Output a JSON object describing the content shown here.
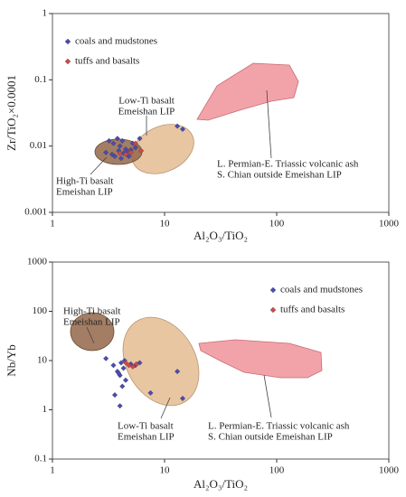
{
  "chart_data": [
    {
      "type": "scatter",
      "xlabel": "Al₂O₃/TiO₂",
      "ylabel": "Zr/TiO₂×0.0001",
      "xlim": [
        1,
        1000
      ],
      "ylim": [
        0.001,
        1
      ],
      "xticks": [
        1,
        10,
        100,
        1000
      ],
      "yticks": [
        0.001,
        0.01,
        0.1,
        1
      ],
      "log_x": true,
      "log_y": true,
      "legend": "upper left",
      "annotations": [
        "Low-Ti basalt",
        "Emeishan LIP",
        "High-Ti basalt",
        "Emeishan LIP",
        "L. Permian-E. Triassic volcanic ash",
        "S. Chian outside Emeishan LIP"
      ],
      "series": [
        {
          "name": "coals and mudstones",
          "color": "#4b4bb0",
          "x": [
            3.2,
            3.5,
            3.8,
            4.0,
            4.2,
            4.5,
            3.0,
            3.4,
            3.9,
            4.3,
            4.6,
            5.0,
            5.5,
            4.1,
            3.6,
            6.0,
            13,
            14.5,
            5.2,
            4.8
          ],
          "values": [
            0.012,
            0.011,
            0.013,
            0.01,
            0.012,
            0.009,
            0.008,
            0.0075,
            0.0085,
            0.0078,
            0.0082,
            0.0088,
            0.0095,
            0.0065,
            0.007,
            0.013,
            0.02,
            0.018,
            0.011,
            0.007
          ]
        },
        {
          "name": "tuffs and basalts",
          "color": "#d04848",
          "x": [
            4.5,
            5.0,
            5.5,
            4.0,
            6.2
          ],
          "values": [
            0.0075,
            0.008,
            0.011,
            0.0078,
            0.0085
          ]
        }
      ]
    },
    {
      "type": "scatter",
      "xlabel": "Al₂O₃/TiO₂",
      "ylabel": "Nb/Yb",
      "xlim": [
        1,
        1000
      ],
      "ylim": [
        0.1,
        1000
      ],
      "xticks": [
        1,
        10,
        100,
        1000
      ],
      "yticks": [
        0.1,
        1,
        10,
        100,
        1000
      ],
      "log_x": true,
      "log_y": true,
      "legend": "upper right",
      "annotations": [
        "High-Ti basalt",
        "Emeishan LIP",
        "Low-Ti basalt",
        "Emeishan LIP",
        "L. Permian-E. Triassic volcanic ash",
        "S. Chian outside Emeishan LIP"
      ],
      "series": [
        {
          "name": "coals and mudstones",
          "color": "#4b4bb0",
          "x": [
            3.0,
            3.5,
            3.8,
            4.0,
            4.1,
            4.3,
            4.5,
            4.2,
            4.0,
            3.6,
            5.5,
            6.0,
            7.5,
            13,
            14.5,
            4.4,
            3.9,
            5.0
          ],
          "values": [
            11,
            8,
            6,
            5,
            9,
            7,
            4,
            3,
            1.2,
            2,
            8,
            9,
            2.2,
            6,
            1.7,
            10,
            5.5,
            8.5
          ]
        },
        {
          "name": "tuffs and basalts",
          "color": "#d04848",
          "x": [
            4.8,
            5.2,
            5.6,
            4.5
          ],
          "values": [
            8,
            7.5,
            8.5,
            9
          ]
        }
      ]
    }
  ]
}
